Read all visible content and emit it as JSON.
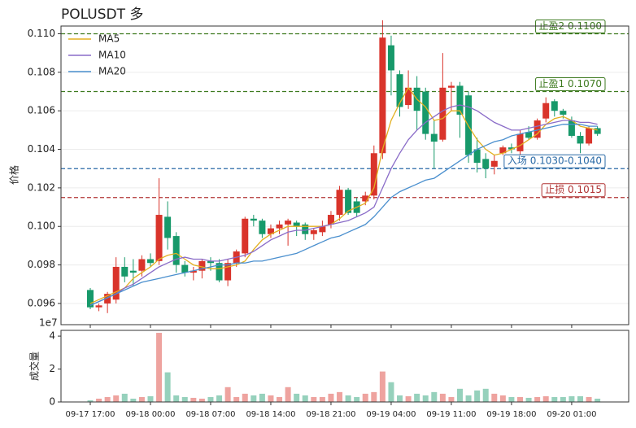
{
  "chart_data": {
    "type": "candlestick",
    "title": "POLUSDT 多",
    "ylabel": "价格",
    "categories": [
      "09-17 17:00",
      null,
      null,
      null,
      null,
      null,
      null,
      "09-18 00:00",
      null,
      null,
      null,
      null,
      null,
      null,
      "09-18 07:00",
      null,
      null,
      null,
      null,
      null,
      null,
      "09-18 14:00",
      null,
      null,
      null,
      null,
      null,
      null,
      "09-18 21:00",
      null,
      null,
      null,
      null,
      null,
      null,
      "09-19 04:00",
      null,
      null,
      null,
      null,
      null,
      null,
      "09-19 11:00",
      null,
      null,
      null,
      null,
      null,
      null,
      "09-19 18:00",
      null,
      null,
      null,
      null,
      null,
      null,
      "09-20 01:00",
      null,
      null,
      null
    ],
    "open": [
      0.0967,
      0.0958,
      0.096,
      0.0962,
      0.0979,
      0.0977,
      0.0977,
      0.0983,
      0.0982,
      0.1005,
      0.0995,
      0.098,
      0.0976,
      0.0977,
      0.0982,
      0.0981,
      0.0972,
      0.0981,
      0.0986,
      0.1004,
      0.1003,
      0.0996,
      0.0999,
      0.1001,
      0.1002,
      0.1001,
      0.0996,
      0.0997,
      0.1001,
      0.1006,
      0.1019,
      0.1013,
      0.1013,
      0.1016,
      0.1038,
      0.1094,
      0.1079,
      0.1063,
      0.1072,
      0.107,
      0.1048,
      0.1045,
      0.1072,
      0.1073,
      0.1068,
      0.104,
      0.1035,
      0.1031,
      0.1038,
      0.1041,
      0.1039,
      0.1049,
      0.1046,
      0.1056,
      0.1065,
      0.106,
      0.1055,
      0.1047,
      0.1043,
      0.1051
    ],
    "high": [
      0.0968,
      0.096,
      0.0966,
      0.0984,
      0.0984,
      0.0983,
      0.0985,
      0.0986,
      0.1025,
      0.1013,
      0.0997,
      0.0982,
      0.0979,
      0.0983,
      0.0984,
      0.0983,
      0.0983,
      0.0988,
      0.1005,
      0.1006,
      0.1004,
      0.1001,
      0.1003,
      0.1004,
      0.1003,
      0.1002,
      0.0999,
      0.1003,
      0.1008,
      0.1021,
      0.102,
      0.1015,
      0.1018,
      0.1042,
      0.1107,
      0.1099,
      0.1081,
      0.1081,
      0.1078,
      0.1072,
      0.1055,
      0.109,
      0.1075,
      0.1075,
      0.107,
      0.1046,
      0.1038,
      0.1037,
      0.1042,
      0.1043,
      0.105,
      0.1052,
      0.1056,
      0.1067,
      0.1066,
      0.1061,
      0.1057,
      0.1049,
      0.1052,
      0.1052
    ],
    "low": [
      0.0957,
      0.0956,
      0.0955,
      0.096,
      0.0971,
      0.0969,
      0.0974,
      0.0979,
      0.098,
      0.0988,
      0.0976,
      0.0974,
      0.0972,
      0.0973,
      0.0977,
      0.0971,
      0.0969,
      0.0979,
      0.0984,
      0.1,
      0.0994,
      0.0994,
      0.0996,
      0.099,
      0.0995,
      0.0993,
      0.0993,
      0.0995,
      0.0999,
      0.1003,
      0.1006,
      0.1005,
      0.1011,
      0.1014,
      0.1035,
      0.1068,
      0.1057,
      0.1061,
      0.105,
      0.1045,
      0.103,
      0.1044,
      0.106,
      0.1046,
      0.1033,
      0.1028,
      0.1025,
      0.1027,
      0.1037,
      0.1038,
      0.1037,
      0.1045,
      0.1045,
      0.1054,
      0.1057,
      0.1056,
      0.1046,
      0.1038,
      0.1042,
      0.1047
    ],
    "close": [
      0.0958,
      0.0959,
      0.0965,
      0.0979,
      0.0974,
      0.0976,
      0.0983,
      0.0981,
      0.1006,
      0.0994,
      0.098,
      0.0976,
      0.0977,
      0.0982,
      0.0981,
      0.0972,
      0.0981,
      0.0987,
      0.1004,
      0.1003,
      0.0996,
      0.0999,
      0.1001,
      0.1003,
      0.1,
      0.0996,
      0.0998,
      0.1,
      0.1006,
      0.1019,
      0.1007,
      0.1007,
      0.1016,
      0.1038,
      0.1098,
      0.1081,
      0.1062,
      0.1072,
      0.106,
      0.1048,
      0.1044,
      0.1072,
      0.1073,
      0.1058,
      0.1037,
      0.1033,
      0.103,
      0.1034,
      0.1041,
      0.104,
      0.1048,
      0.1046,
      0.1055,
      0.1064,
      0.106,
      0.1058,
      0.1047,
      0.1043,
      0.1051,
      0.1048
    ],
    "up_color": "#d9342b",
    "down_color": "#17996a",
    "ylim": [
      0.0949,
      0.1104
    ],
    "yticks": [
      0.096,
      0.098,
      {
        "value": 0.1,
        "label": "0.100"
      },
      0.102,
      0.104,
      0.106,
      0.108,
      {
        "value": 0.11,
        "label": "0.110"
      }
    ],
    "grid": true,
    "legend": "upper left",
    "series": [
      {
        "name": "MA5",
        "color": "#e3b020",
        "values": [
          0.096,
          0.0962,
          0.0964,
          0.0966,
          0.0968,
          0.0973,
          0.0976,
          0.0979,
          0.0983,
          0.0985,
          0.0986,
          0.0983,
          0.098,
          0.0979,
          0.0978,
          0.0978,
          0.0979,
          0.098,
          0.0982,
          0.0988,
          0.0993,
          0.0996,
          0.0998,
          0.1,
          0.1,
          0.1,
          0.1,
          0.1,
          0.1001,
          0.1004,
          0.1008,
          0.101,
          0.1012,
          0.102,
          0.104,
          0.1055,
          0.1064,
          0.1072,
          0.1066,
          0.1062,
          0.1055,
          0.1056,
          0.106,
          0.106,
          0.1052,
          0.1045,
          0.104,
          0.1037,
          0.1038,
          0.104,
          0.1042,
          0.1045,
          0.1048,
          0.1053,
          0.1056,
          0.1057,
          0.1055,
          0.1052,
          0.1051,
          0.105
        ]
      },
      {
        "name": "MA10",
        "color": "#8a6cc8",
        "values": [
          0.0959,
          0.0961,
          0.0963,
          0.0965,
          0.0968,
          0.097,
          0.0973,
          0.0976,
          0.0979,
          0.0981,
          0.0983,
          0.0984,
          0.0983,
          0.0983,
          0.0982,
          0.0982,
          0.0983,
          0.0984,
          0.0985,
          0.0987,
          0.099,
          0.0993,
          0.0995,
          0.0997,
          0.0998,
          0.0998,
          0.0999,
          0.1,
          0.1001,
          0.1002,
          0.1003,
          0.1005,
          0.1007,
          0.101,
          0.102,
          0.103,
          0.1038,
          0.1045,
          0.105,
          0.1054,
          0.1057,
          0.106,
          0.1062,
          0.1063,
          0.1062,
          0.106,
          0.1057,
          0.1054,
          0.1052,
          0.105,
          0.105,
          0.1051,
          0.1052,
          0.1053,
          0.1054,
          0.1055,
          0.1055,
          0.1054,
          0.1054,
          0.1053
        ]
      },
      {
        "name": "MA20",
        "color": "#4a8fce",
        "values": [
          0.0959,
          0.0961,
          0.0963,
          0.0965,
          0.0967,
          0.0969,
          0.0971,
          0.0972,
          0.0973,
          0.0974,
          0.0975,
          0.0976,
          0.0977,
          0.0978,
          0.0979,
          0.098,
          0.098,
          0.0981,
          0.0981,
          0.0982,
          0.0982,
          0.0983,
          0.0984,
          0.0985,
          0.0986,
          0.0988,
          0.099,
          0.0992,
          0.0994,
          0.0995,
          0.0997,
          0.0999,
          0.1001,
          0.1005,
          0.101,
          0.1015,
          0.1018,
          0.102,
          0.1022,
          0.1024,
          0.1025,
          0.1028,
          0.1031,
          0.1034,
          0.1037,
          0.104,
          0.1042,
          0.1044,
          0.1045,
          0.1047,
          0.1048,
          0.1049,
          0.105,
          0.1051,
          0.1052,
          0.1053,
          0.1053,
          0.1053,
          0.1052,
          0.1052
        ]
      }
    ],
    "levels": [
      {
        "value": 0.11,
        "label": "止盈2 0.1100",
        "color": "#3d7a1f"
      },
      {
        "value": 0.107,
        "label": "止盈1 0.1070",
        "color": "#3d7a1f"
      },
      {
        "value": 0.103,
        "label": "入场 0.1030-0.1040",
        "color": "#2a6aa6"
      },
      {
        "value": 0.1015,
        "label": "止损 0.1015",
        "color": "#b03232"
      }
    ],
    "volume": {
      "type": "bar",
      "ylabel": "成交量",
      "offset_label": "1e7",
      "ylim": [
        0,
        4.35
      ],
      "yticks": [
        0,
        2,
        4
      ],
      "values": [
        0.1,
        0.2,
        0.3,
        0.4,
        0.5,
        0.2,
        0.3,
        0.35,
        4.2,
        1.8,
        0.4,
        0.3,
        0.25,
        0.2,
        0.3,
        0.4,
        0.9,
        0.3,
        0.5,
        0.4,
        0.5,
        0.4,
        0.3,
        0.9,
        0.5,
        0.4,
        0.3,
        0.3,
        0.5,
        0.6,
        0.4,
        0.3,
        0.5,
        0.6,
        1.85,
        1.2,
        0.4,
        0.35,
        0.5,
        0.4,
        0.6,
        0.5,
        0.3,
        0.8,
        0.4,
        0.7,
        0.8,
        0.5,
        0.4,
        0.3,
        0.3,
        0.25,
        0.3,
        0.35,
        0.3,
        0.3,
        0.35,
        0.35,
        0.3,
        0.2
      ]
    }
  }
}
